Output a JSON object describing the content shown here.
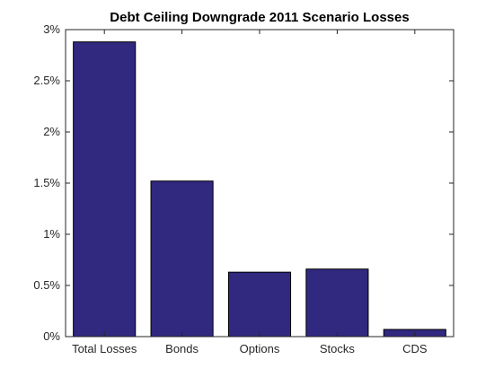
{
  "chart_data": {
    "type": "bar",
    "title": "Debt Ceiling Downgrade 2011 Scenario Losses",
    "xlabel": "",
    "ylabel": "",
    "categories": [
      "Total Losses",
      "Bonds",
      "Options",
      "Stocks",
      "CDS"
    ],
    "values": [
      2.88,
      1.52,
      0.63,
      0.66,
      0.07
    ],
    "unit": "%",
    "ylim": [
      0,
      3
    ],
    "yticks": [
      "0%",
      "0.5%",
      "1%",
      "1.5%",
      "2%",
      "2.5%",
      "3%"
    ],
    "grid": false,
    "legend": "none",
    "colors": {
      "bar_fill": "#31287F",
      "bar_edge": "#000000",
      "axis": "#262626"
    }
  }
}
